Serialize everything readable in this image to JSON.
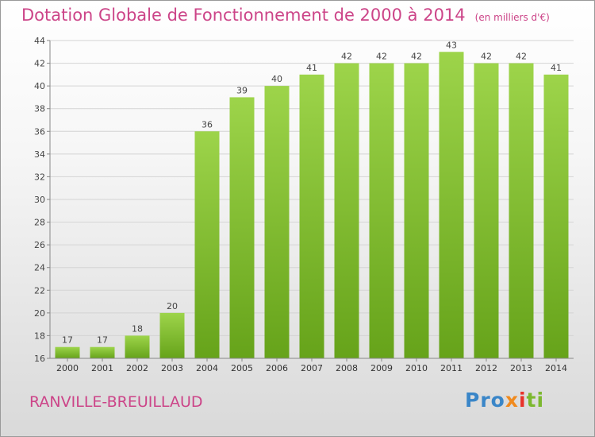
{
  "header": {
    "title": "Dotation Globale de Fonctionnement de 2000 à 2014",
    "unit": "(en milliers d'€)"
  },
  "footer": {
    "town": "RANVILLE-BREUILLAUD",
    "logo": {
      "p1": "Pro",
      "p2": "x",
      "p3": "i",
      "p4": "ti"
    }
  },
  "colors": {
    "title": "#cc4488",
    "bar_light": "#9dd44a",
    "bar_dark": "#66a31a"
  },
  "chart_data": {
    "type": "bar",
    "title": "Dotation Globale de Fonctionnement de 2000 à 2014",
    "subtitle": "(en milliers d'€)",
    "categories": [
      "2000",
      "2001",
      "2002",
      "2003",
      "2004",
      "2005",
      "2006",
      "2007",
      "2008",
      "2009",
      "2010",
      "2011",
      "2012",
      "2013",
      "2014"
    ],
    "values": [
      17,
      17,
      18,
      20,
      36,
      39,
      40,
      41,
      42,
      42,
      42,
      43,
      42,
      42,
      41
    ],
    "ylim": [
      16,
      44
    ],
    "yticks": [
      16,
      18,
      20,
      22,
      24,
      26,
      28,
      30,
      32,
      34,
      36,
      38,
      40,
      42,
      44
    ],
    "grid": true,
    "data_labels": true
  }
}
